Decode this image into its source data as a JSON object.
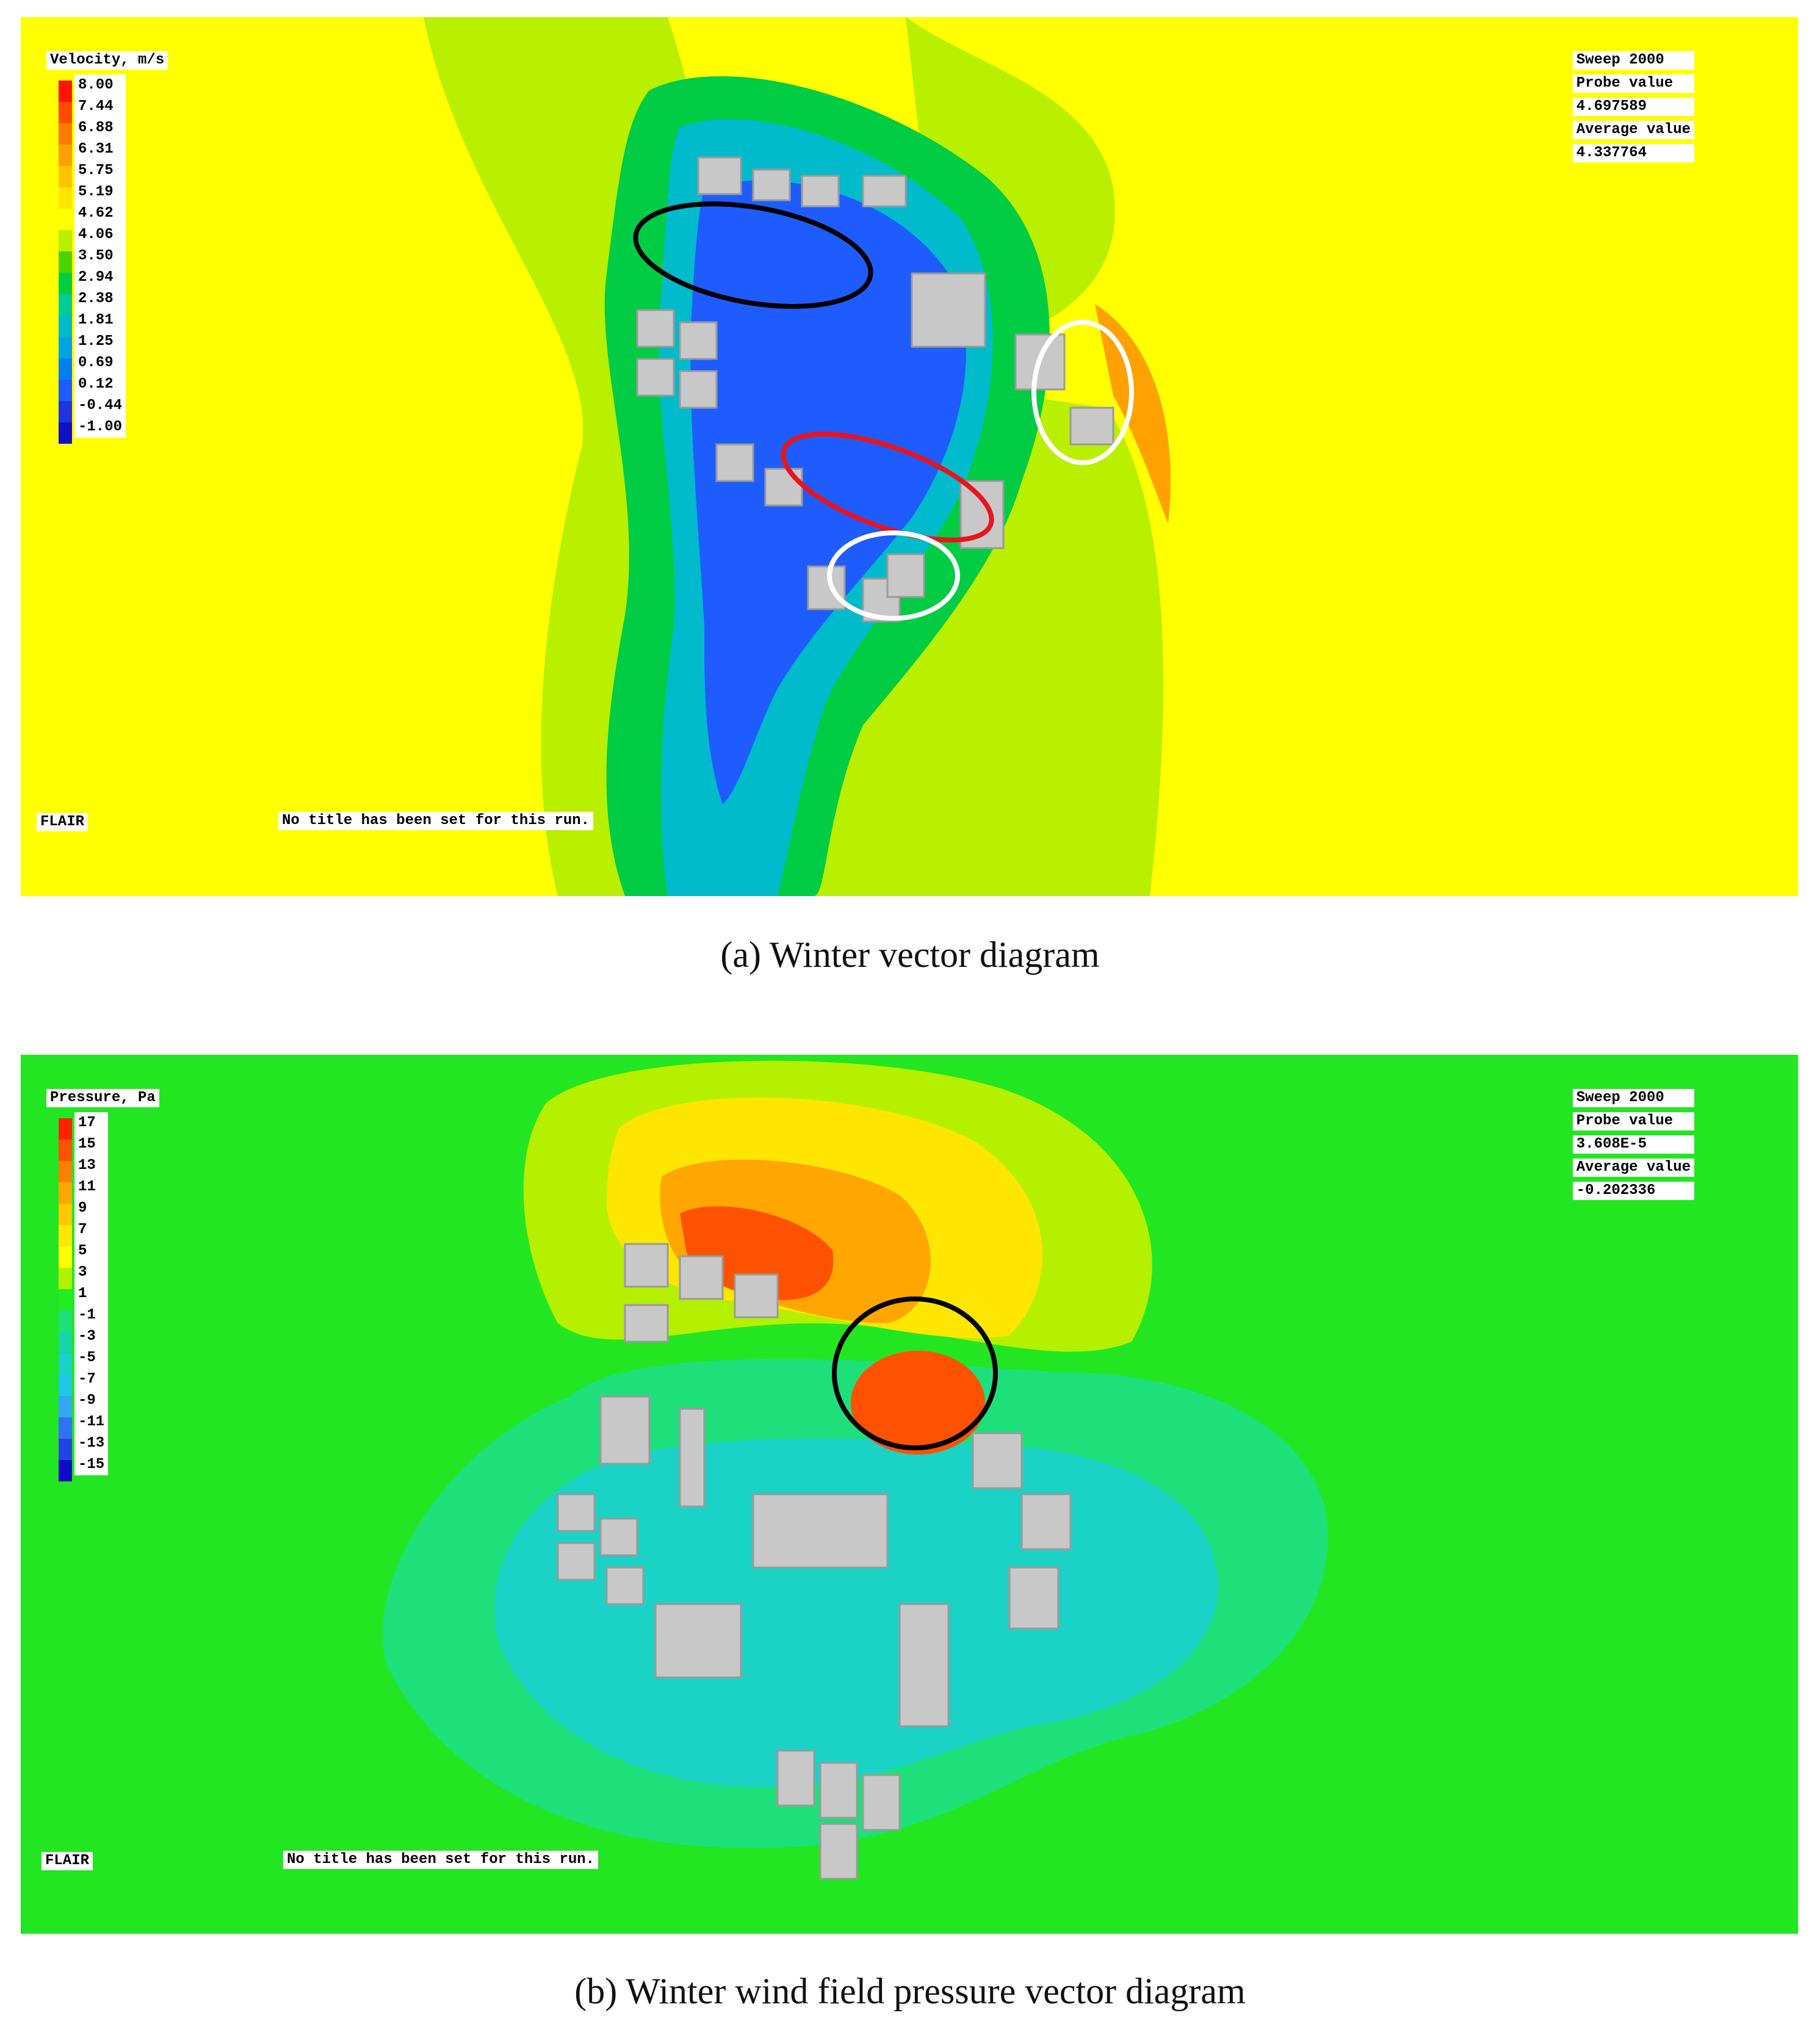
{
  "panels": [
    {
      "id": "a",
      "legend": {
        "title": "Velocity, m/s",
        "ticks": [
          "8.00",
          "7.44",
          "6.88",
          "6.31",
          "5.75",
          "5.19",
          "4.62",
          "4.06",
          "3.50",
          "2.94",
          "2.38",
          "1.81",
          "1.25",
          "0.69",
          "0.12",
          "-0.44",
          "-1.00"
        ],
        "colors": [
          "#ff1400",
          "#ff4b00",
          "#ff7a00",
          "#ffa100",
          "#ffc400",
          "#ffe500",
          "#ffff00",
          "#b8f000",
          "#4cd400",
          "#00cc44",
          "#00cc99",
          "#00bbcc",
          "#00a3e6",
          "#0080f0",
          "#1e5cff",
          "#1e35e0",
          "#1010c8"
        ]
      },
      "info": [
        "Sweep 2000",
        "Probe value",
        "4.697589",
        "Average value",
        "4.337764"
      ],
      "software": "FLAIR",
      "run_title": "No title has been set for this run.",
      "caption": "(a) Winter vector diagram",
      "colors": {
        "background": "#ffff00",
        "marker_black": "#000000",
        "marker_red": "#e8141e",
        "marker_white": "#ffffff",
        "buildings": "#c8c8c8"
      }
    },
    {
      "id": "b",
      "legend": {
        "title": "Pressure, Pa",
        "ticks": [
          "17",
          "15",
          "13",
          "11",
          "9",
          "7",
          "5",
          "3",
          "1",
          "-1",
          "-3",
          "-5",
          "-7",
          "-9",
          "-11",
          "-13",
          "-15"
        ],
        "colors": [
          "#ff2400",
          "#ff5200",
          "#ff8000",
          "#ffa600",
          "#ffc800",
          "#ffe600",
          "#ffff00",
          "#b4f000",
          "#22ec22",
          "#1ee07a",
          "#19d4a6",
          "#1ad2c6",
          "#1ec8e6",
          "#33a8f2",
          "#2e74f2",
          "#2244e6",
          "#0c0cc8"
        ]
      },
      "info": [
        "Sweep 2000",
        "Probe value",
        "3.608E-5",
        "Average value",
        "-0.202336"
      ],
      "software": "FLAIR",
      "run_title": "No title has been set for this run.",
      "caption": "(b) Winter wind field pressure vector diagram",
      "colors": {
        "background": "#22e622",
        "marker_black": "#000000",
        "buildings": "#c8c8c8"
      }
    }
  ]
}
